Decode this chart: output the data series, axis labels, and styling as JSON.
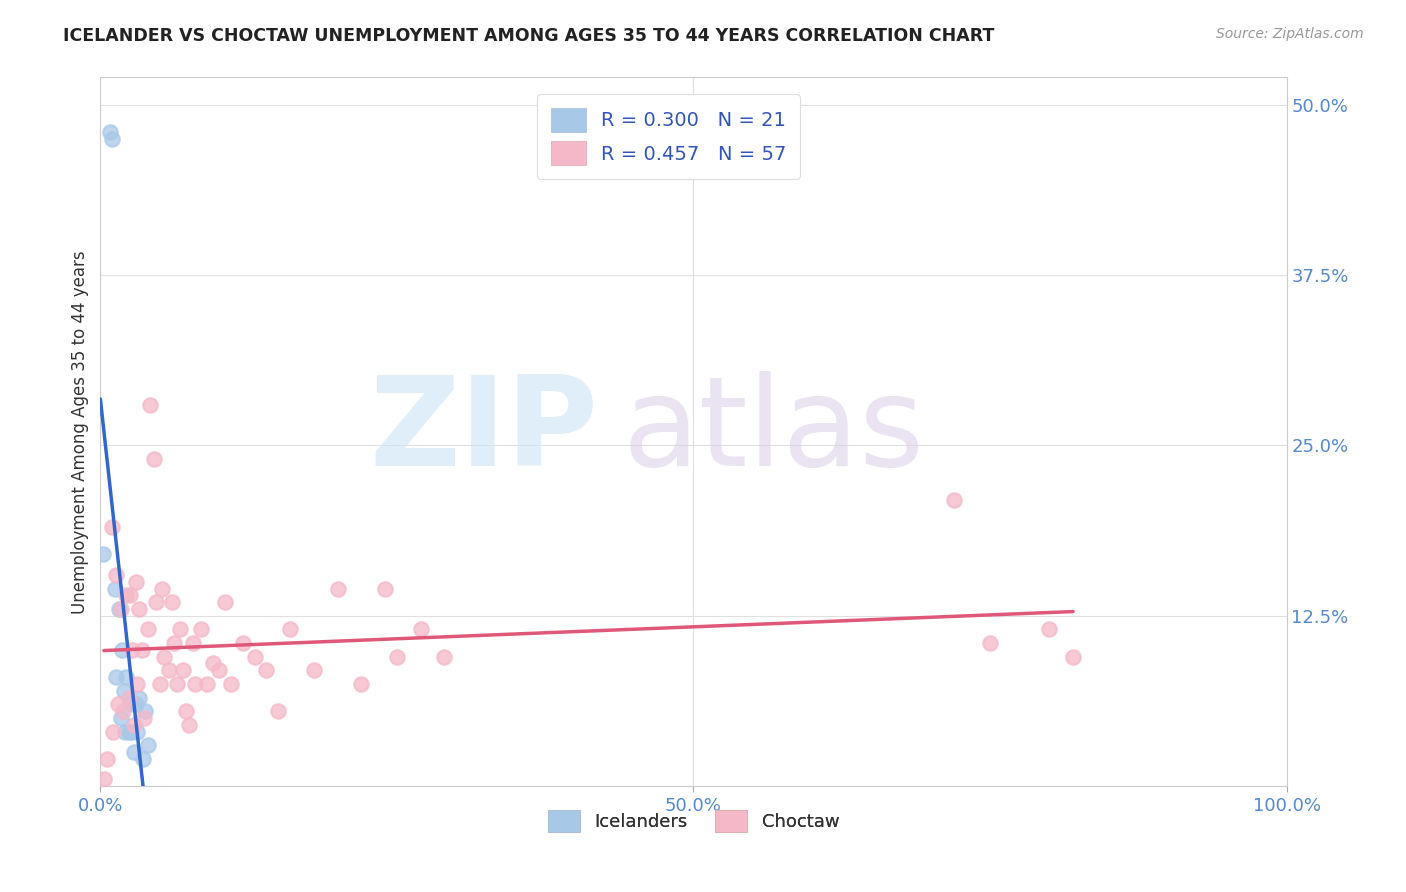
{
  "title": "ICELANDER VS CHOCTAW UNEMPLOYMENT AMONG AGES 35 TO 44 YEARS CORRELATION CHART",
  "source": "Source: ZipAtlas.com",
  "ylabel": "Unemployment Among Ages 35 to 44 years",
  "xlim": [
    0,
    1.0
  ],
  "ylim": [
    0,
    0.52
  ],
  "x_ticks": [
    0.0,
    0.5,
    1.0
  ],
  "x_tick_labels": [
    "0.0%",
    "50.0%",
    "100.0%"
  ],
  "y_ticks": [
    0.0,
    0.125,
    0.25,
    0.375,
    0.5
  ],
  "y_tick_labels": [
    "",
    "12.5%",
    "25.0%",
    "37.5%",
    "50.0%"
  ],
  "icelanders_color": "#a8c8e8",
  "choctaw_color": "#f4b8c8",
  "icelanders_line_color": "#3366cc",
  "choctaw_line_color": "#e05878",
  "icelanders_scatter_edge": "#a8c8e8",
  "choctaw_scatter_edge": "#f4b8c8",
  "legend_r_icelanders": "R = 0.300",
  "legend_n_icelanders": "N = 21",
  "legend_r_choctaw": "R = 0.457",
  "legend_n_choctaw": "N = 57",
  "icelanders_x": [
    0.008,
    0.01,
    0.002,
    0.012,
    0.013,
    0.016,
    0.017,
    0.018,
    0.02,
    0.021,
    0.022,
    0.024,
    0.025,
    0.026,
    0.028,
    0.03,
    0.031,
    0.033,
    0.036,
    0.038,
    0.04
  ],
  "icelanders_y": [
    0.48,
    0.475,
    0.17,
    0.145,
    0.08,
    0.13,
    0.05,
    0.1,
    0.07,
    0.04,
    0.08,
    0.04,
    0.06,
    0.04,
    0.025,
    0.06,
    0.04,
    0.065,
    0.02,
    0.055,
    0.03
  ],
  "choctaw_x": [
    0.003,
    0.006,
    0.01,
    0.011,
    0.013,
    0.015,
    0.017,
    0.019,
    0.022,
    0.024,
    0.025,
    0.027,
    0.028,
    0.03,
    0.031,
    0.033,
    0.035,
    0.037,
    0.04,
    0.042,
    0.045,
    0.047,
    0.05,
    0.052,
    0.054,
    0.058,
    0.06,
    0.062,
    0.065,
    0.067,
    0.07,
    0.072,
    0.075,
    0.078,
    0.08,
    0.085,
    0.09,
    0.095,
    0.1,
    0.105,
    0.11,
    0.12,
    0.13,
    0.14,
    0.15,
    0.16,
    0.18,
    0.2,
    0.22,
    0.24,
    0.25,
    0.27,
    0.29,
    0.72,
    0.75,
    0.8,
    0.82
  ],
  "choctaw_y": [
    0.005,
    0.02,
    0.19,
    0.04,
    0.155,
    0.06,
    0.13,
    0.055,
    0.14,
    0.065,
    0.14,
    0.1,
    0.045,
    0.15,
    0.075,
    0.13,
    0.1,
    0.05,
    0.115,
    0.28,
    0.24,
    0.135,
    0.075,
    0.145,
    0.095,
    0.085,
    0.135,
    0.105,
    0.075,
    0.115,
    0.085,
    0.055,
    0.045,
    0.105,
    0.075,
    0.115,
    0.075,
    0.09,
    0.085,
    0.135,
    0.075,
    0.105,
    0.095,
    0.085,
    0.055,
    0.115,
    0.085,
    0.145,
    0.075,
    0.145,
    0.095,
    0.115,
    0.095,
    0.21,
    0.105,
    0.115,
    0.095
  ],
  "background_color": "#ffffff",
  "grid_color": "#dddddd",
  "watermark_zip_color": "#cce4f5",
  "watermark_atlas_color": "#d8cce8"
}
